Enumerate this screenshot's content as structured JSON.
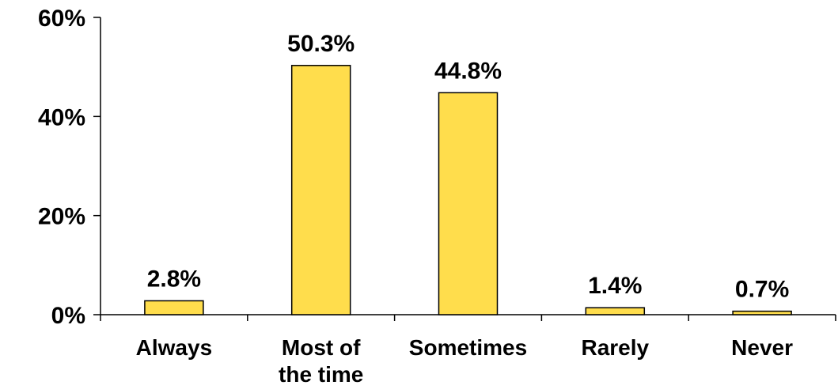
{
  "chart_data": {
    "type": "bar",
    "categories": [
      [
        "Always"
      ],
      [
        "Most of",
        "the time"
      ],
      [
        "Sometimes"
      ],
      [
        "Rarely"
      ],
      [
        "Never"
      ]
    ],
    "values": [
      2.8,
      50.3,
      44.8,
      1.4,
      0.7
    ],
    "data_labels": [
      "2.8%",
      "50.3%",
      "44.8%",
      "1.4%",
      "0.7%"
    ],
    "title": "",
    "xlabel": "",
    "ylabel": "",
    "ylim": [
      0,
      60
    ],
    "yticks": [
      0,
      20,
      40,
      60
    ],
    "ytick_labels": [
      "0%",
      "20%",
      "40%",
      "60%"
    ],
    "grid": false,
    "legend": "none",
    "colors": {
      "bar_fill": "#FFDD4C",
      "bar_stroke": "#000000",
      "axis": "#000000"
    }
  }
}
